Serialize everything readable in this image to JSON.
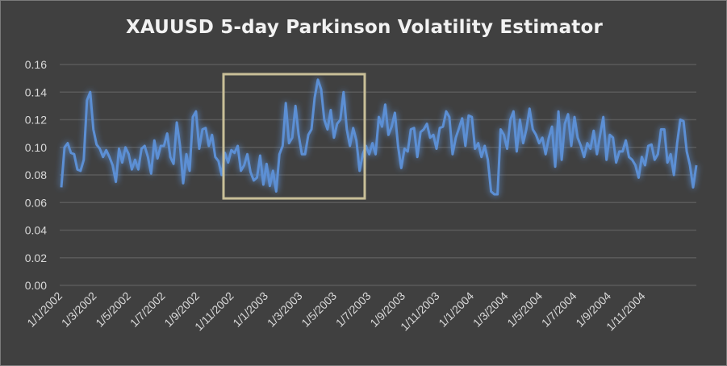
{
  "chart_data": {
    "type": "line",
    "title": "XAUUSD 5-day Parkinson Volatility Estimator",
    "xlabel": "",
    "ylabel": "",
    "ylim": [
      0,
      0.16
    ],
    "yticks": [
      "0.00",
      "0.02",
      "0.04",
      "0.06",
      "0.08",
      "0.10",
      "0.12",
      "0.14",
      "0.16"
    ],
    "ytick_values": [
      0,
      0.02,
      0.04,
      0.06,
      0.08,
      0.1,
      0.12,
      0.14,
      0.16
    ],
    "xticks": [
      "1/1/2002",
      "1/3/2002",
      "1/5/2002",
      "1/7/2002",
      "1/9/2002",
      "1/11/2002",
      "1/1/2003",
      "1/3/2003",
      "1/5/2003",
      "1/7/2003",
      "1/9/2003",
      "1/11/2003",
      "1/1/2004",
      "1/3/2004",
      "1/5/2004",
      "1/7/2004",
      "1/9/2004",
      "1/11/2004"
    ],
    "grid": true,
    "legend": "none",
    "colors": {
      "line": "#5b8fd4",
      "highlight_box": "#c9bf98",
      "background": "#404040",
      "grid": "#5a5a5a"
    },
    "highlight_region": {
      "from": "~1/11/2002",
      "to": "~1/6/2003",
      "ylim": [
        0.063,
        0.153
      ]
    },
    "series": [
      {
        "name": "XAUUSD 5-day Parkinson Volatility",
        "values": [
          0.071,
          0.1,
          0.103,
          0.096,
          0.095,
          0.084,
          0.083,
          0.091,
          0.134,
          0.14,
          0.113,
          0.102,
          0.099,
          0.093,
          0.098,
          0.093,
          0.087,
          0.075,
          0.099,
          0.089,
          0.1,
          0.095,
          0.084,
          0.091,
          0.084,
          0.099,
          0.101,
          0.093,
          0.081,
          0.105,
          0.092,
          0.101,
          0.101,
          0.11,
          0.093,
          0.088,
          0.118,
          0.101,
          0.074,
          0.095,
          0.083,
          0.122,
          0.126,
          0.099,
          0.113,
          0.114,
          0.101,
          0.109,
          0.093,
          0.09,
          0.08,
          0.096,
          0.089,
          0.098,
          0.096,
          0.101,
          0.083,
          0.087,
          0.095,
          0.082,
          0.076,
          0.078,
          0.094,
          0.073,
          0.088,
          0.072,
          0.083,
          0.068,
          0.095,
          0.101,
          0.132,
          0.103,
          0.107,
          0.13,
          0.109,
          0.095,
          0.095,
          0.109,
          0.113,
          0.136,
          0.149,
          0.142,
          0.12,
          0.113,
          0.127,
          0.107,
          0.117,
          0.12,
          0.14,
          0.113,
          0.101,
          0.114,
          0.105,
          0.083,
          0.095,
          0.101,
          0.095,
          0.103,
          0.095,
          0.122,
          0.115,
          0.131,
          0.109,
          0.115,
          0.125,
          0.101,
          0.085,
          0.099,
          0.097,
          0.113,
          0.114,
          0.093,
          0.111,
          0.113,
          0.117,
          0.107,
          0.109,
          0.099,
          0.114,
          0.115,
          0.126,
          0.122,
          0.095,
          0.107,
          0.114,
          0.121,
          0.101,
          0.123,
          0.122,
          0.099,
          0.103,
          0.093,
          0.101,
          0.091,
          0.068,
          0.066,
          0.066,
          0.113,
          0.109,
          0.099,
          0.12,
          0.126,
          0.097,
          0.12,
          0.103,
          0.113,
          0.128,
          0.113,
          0.109,
          0.103,
          0.107,
          0.095,
          0.107,
          0.115,
          0.086,
          0.126,
          0.091,
          0.117,
          0.124,
          0.101,
          0.122,
          0.107,
          0.101,
          0.093,
          0.103,
          0.099,
          0.112,
          0.095,
          0.109,
          0.122,
          0.091,
          0.109,
          0.107,
          0.089,
          0.097,
          0.097,
          0.105,
          0.093,
          0.091,
          0.087,
          0.078,
          0.093,
          0.087,
          0.101,
          0.102,
          0.091,
          0.095,
          0.113,
          0.113,
          0.089,
          0.095,
          0.08,
          0.103,
          0.12,
          0.119,
          0.097,
          0.087,
          0.071,
          0.087
        ]
      }
    ]
  }
}
